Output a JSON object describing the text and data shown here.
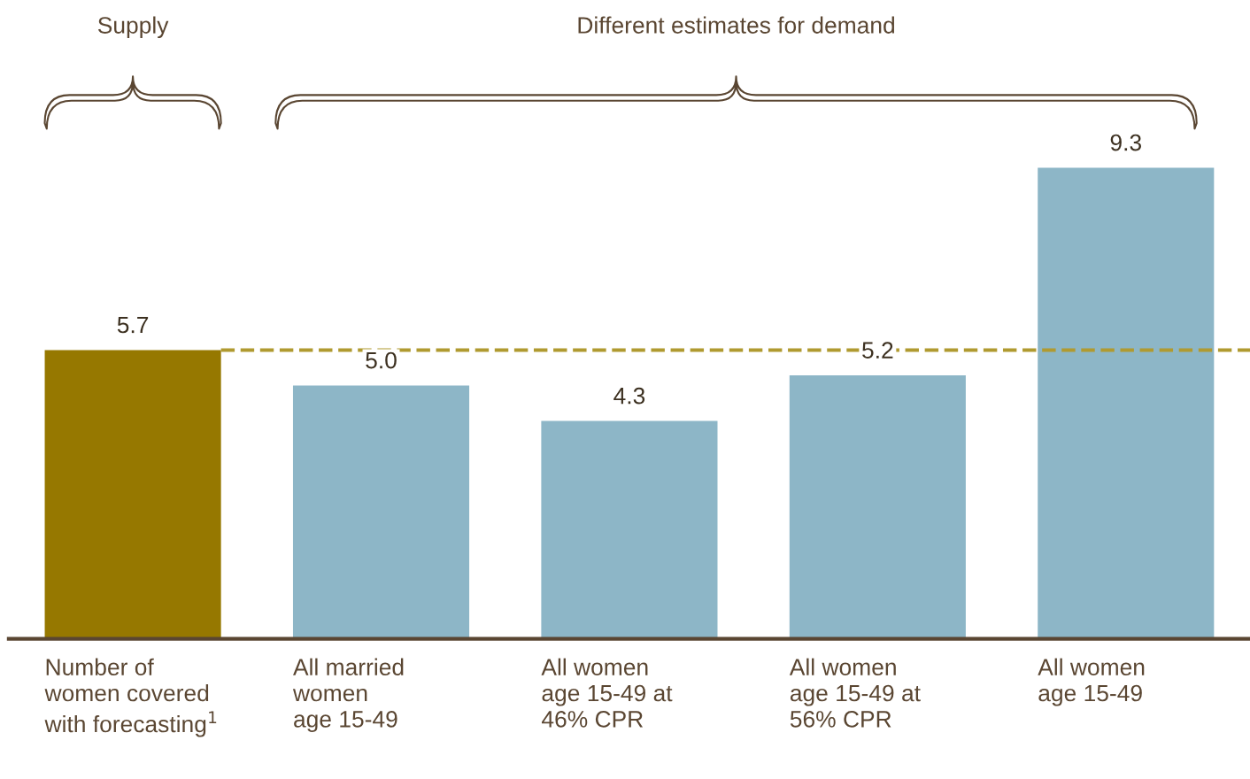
{
  "chart_data": {
    "type": "bar",
    "categories": [
      "Number of\nwomen covered\nwith forecasting$^{1}$",
      "All married\nwomen\nage 15-49",
      "All women\nage 15-49 at\n46% CPR",
      "All women\nage 15-49 at\n56% CPR",
      "All women\nage 15-49"
    ],
    "values": [
      5.7,
      5.0,
      4.3,
      5.2,
      9.3
    ],
    "colors": [
      "#967800",
      "#8db6c7",
      "#8db6c7",
      "#8db6c7",
      "#8db6c7"
    ],
    "value_labels": [
      "5.7",
      "5.0",
      "4.3",
      "5.2",
      "9.3"
    ],
    "ref_lines": [
      {
        "axis": "y",
        "value": 5.7,
        "color": "#b09a30",
        "line_style": "dashed"
      }
    ],
    "annotations": [
      "Supply",
      "Different estimates for demand"
    ],
    "legend": false
  }
}
